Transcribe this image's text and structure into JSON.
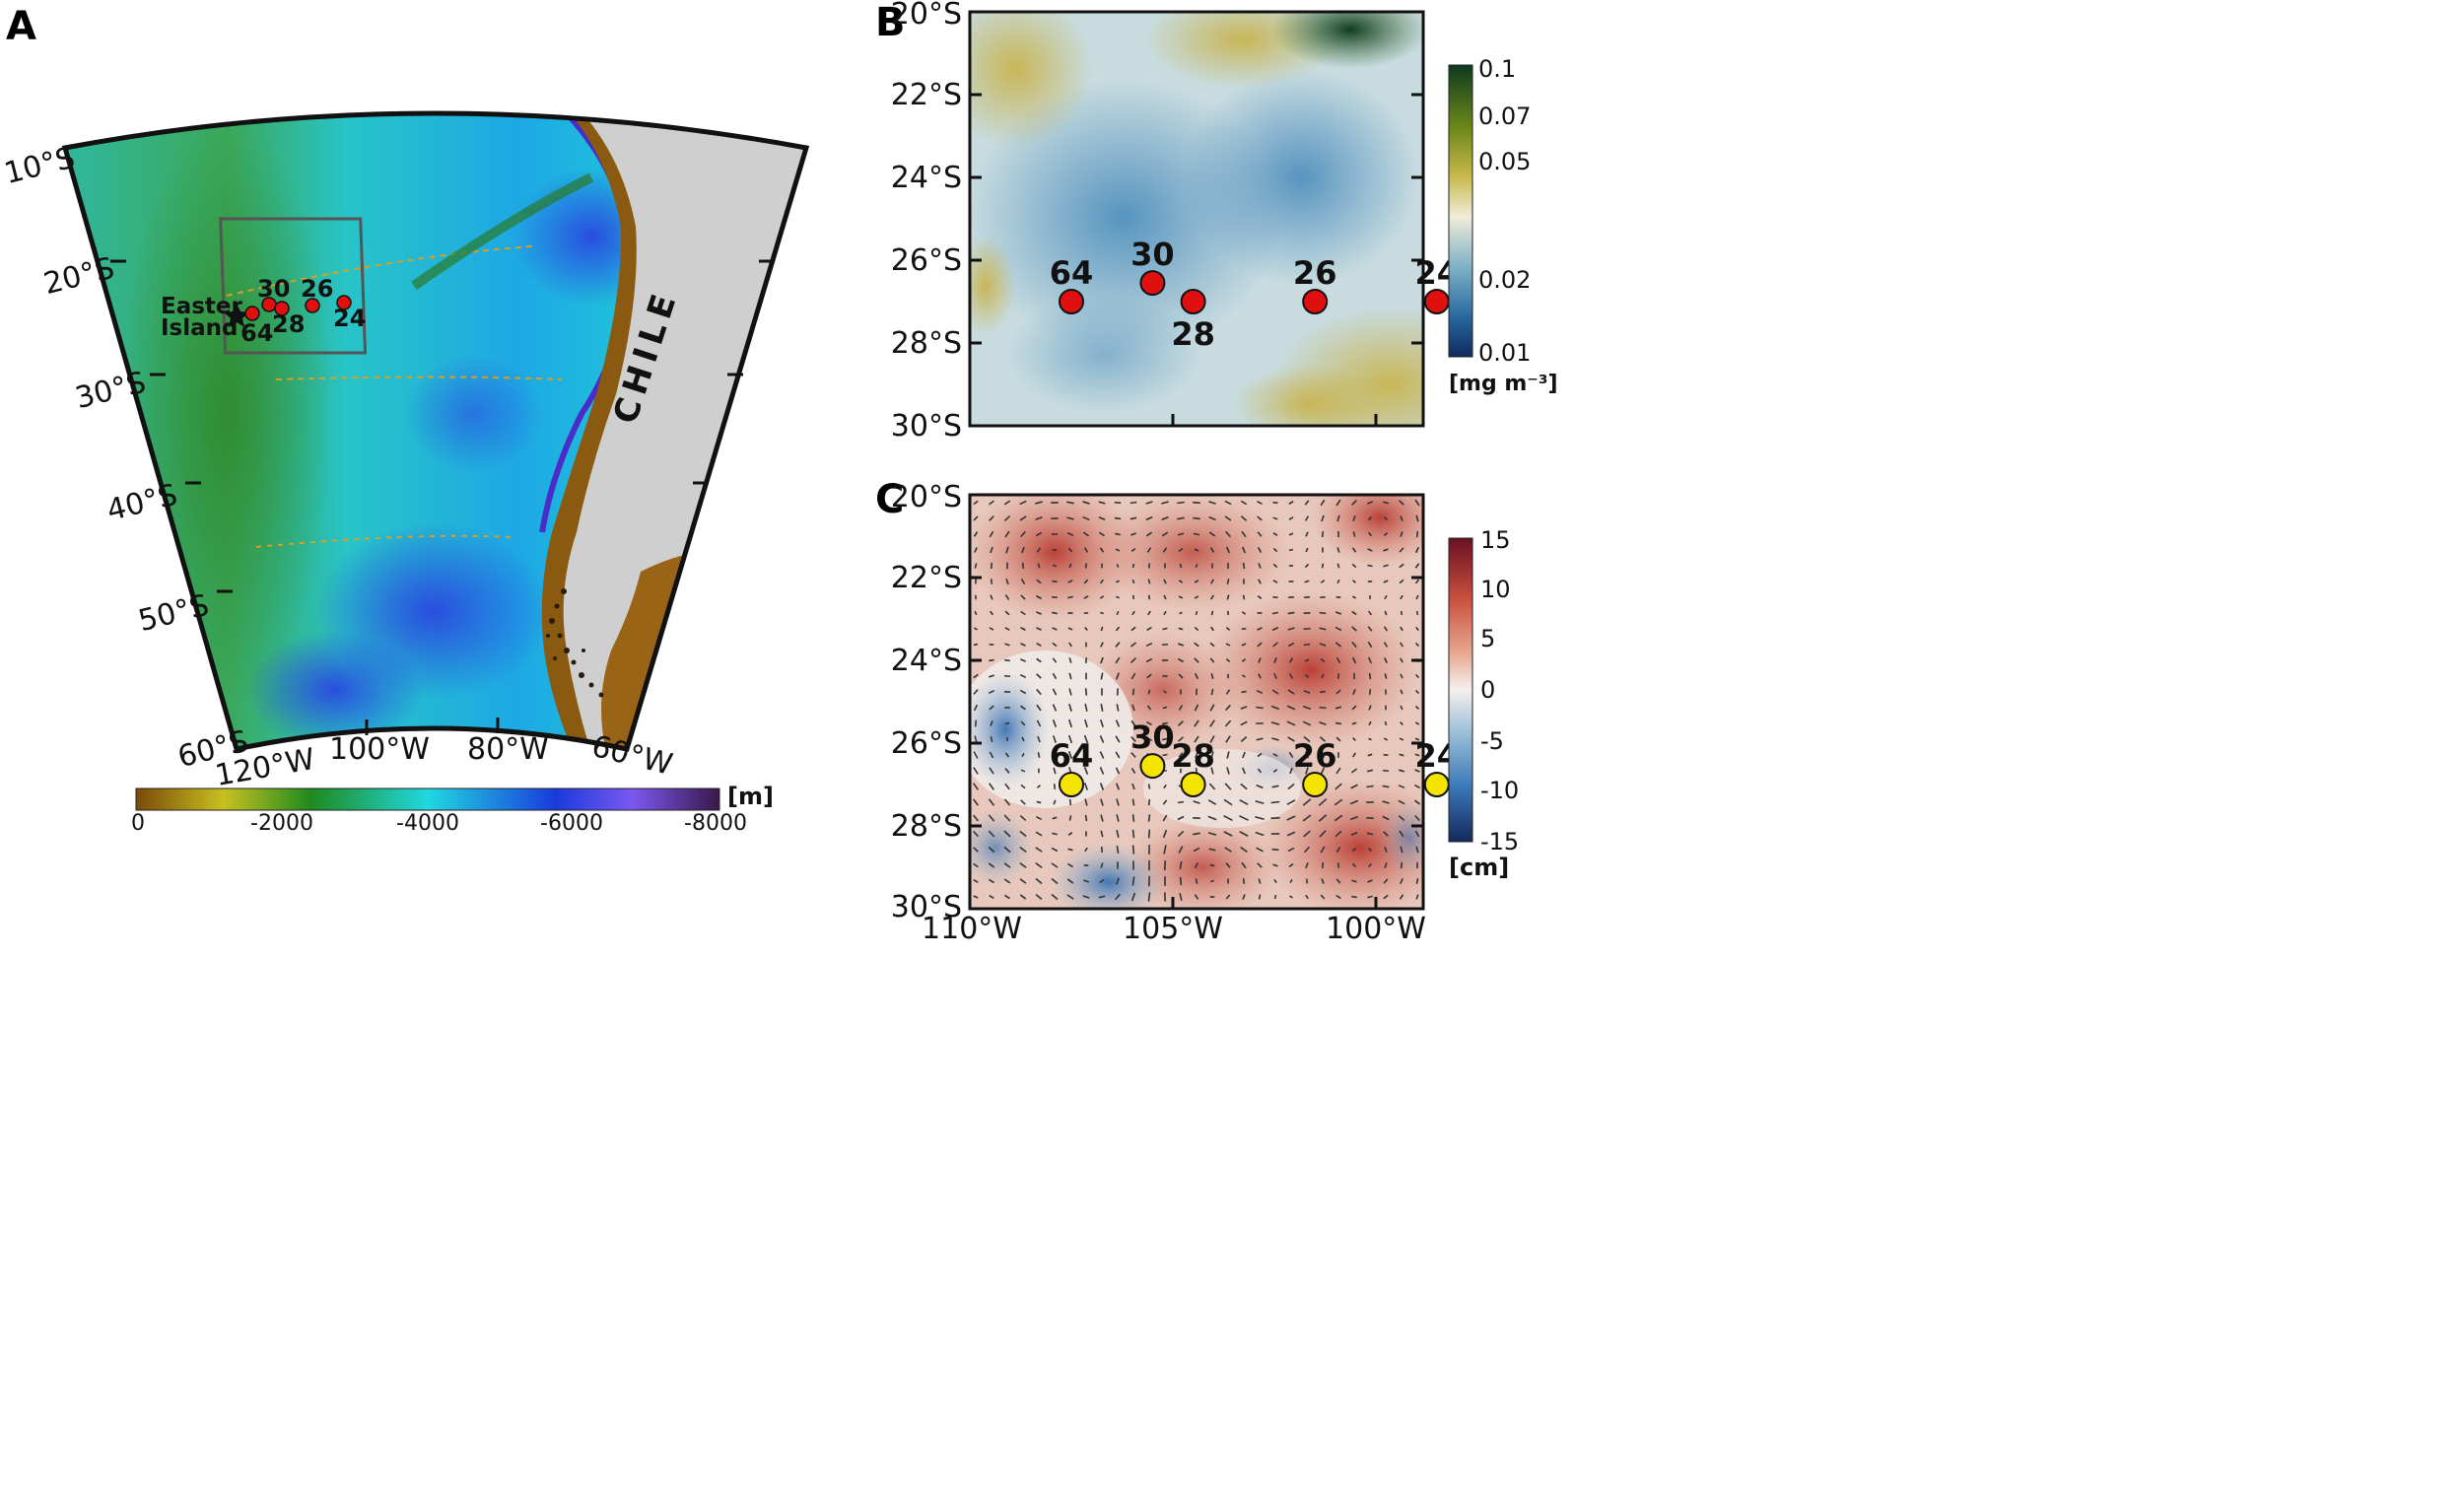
{
  "panels": {
    "a": {
      "letter": "A",
      "lat_labels": [
        "10°S",
        "20°S",
        "30°S",
        "40°S",
        "50°S",
        "60°S"
      ],
      "lon_labels": [
        "120°W",
        "100°W",
        "80°W",
        "60°W"
      ],
      "island_name_1": "Easter",
      "island_name_2": "Island",
      "country": "CHILE",
      "stations": [
        "64",
        "30",
        "28",
        "26",
        "24"
      ],
      "colorbar": {
        "unit": "[m]",
        "ticks": [
          "0",
          "-2000",
          "-4000",
          "-6000",
          "-8000"
        ],
        "colors": [
          "#7a4a08",
          "#c8c020",
          "#1e8a1e",
          "#20d8e0",
          "#1a3adc",
          "#7a58f0",
          "#3a1848"
        ]
      }
    },
    "b": {
      "letter": "B",
      "lat_labels": [
        "20°S",
        "22°S",
        "24°S",
        "26°S",
        "28°S",
        "30°S"
      ],
      "stations": [
        {
          "label": "64",
          "lon": -107.5,
          "lat": -27.0
        },
        {
          "label": "30",
          "lon": -105.5,
          "lat": -26.55
        },
        {
          "label": "28",
          "lon": -104.5,
          "lat": -27.0
        },
        {
          "label": "26",
          "lon": -101.5,
          "lat": -27.0
        },
        {
          "label": "24",
          "lon": -98.5,
          "lat": -27.0
        }
      ],
      "colorbar": {
        "unit": "[mg m⁻³]",
        "ticks": [
          "0.1",
          "0.07",
          "0.05",
          "0.02",
          "0.01"
        ],
        "colors": [
          "#0e3a1e",
          "#6e8a1a",
          "#c8b84a",
          "#f0ecd8",
          "#7aaec4",
          "#2a6aa0",
          "#0e2a60"
        ]
      }
    },
    "c": {
      "letter": "C",
      "lat_labels": [
        "20°S",
        "22°S",
        "24°S",
        "26°S",
        "28°S",
        "30°S"
      ],
      "lon_labels": [
        "110°W",
        "105°W",
        "100°W"
      ],
      "stations": [
        {
          "label": "64",
          "lon": -107.5,
          "lat": -27.0
        },
        {
          "label": "30",
          "lon": -105.5,
          "lat": -26.55
        },
        {
          "label": "28",
          "lon": -104.5,
          "lat": -27.0
        },
        {
          "label": "26",
          "lon": -101.5,
          "lat": -27.0
        },
        {
          "label": "24",
          "lon": -98.5,
          "lat": -27.0
        }
      ],
      "colorbar": {
        "unit": "[cm]",
        "ticks": [
          "15",
          "10",
          "5",
          "0",
          "-5",
          "-10",
          "-15"
        ],
        "colors": [
          "#6a1022",
          "#c8503e",
          "#e8a890",
          "#f4f0ee",
          "#9cc0d8",
          "#3a78b8",
          "#14285a"
        ]
      }
    }
  }
}
